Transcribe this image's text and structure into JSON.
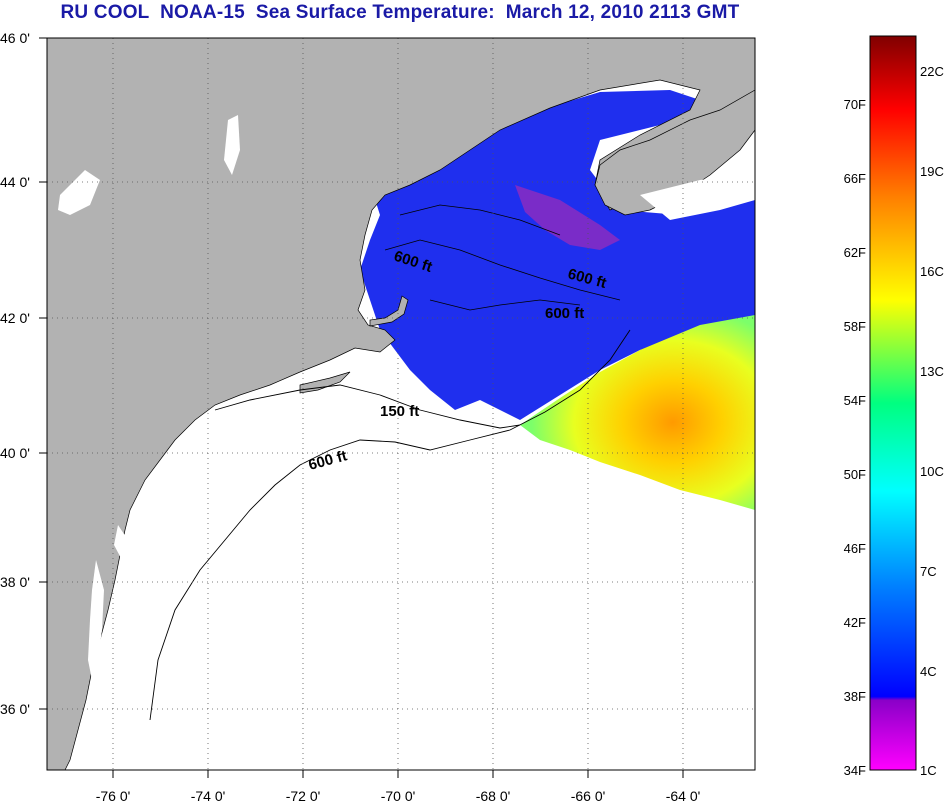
{
  "title": "RU COOL  NOAA-15  Sea Surface Temperature:  March 12, 2010 2113 GMT",
  "map": {
    "lon_labels": [
      "-76 0'",
      "-74 0'",
      "-72 0'",
      "-70 0'",
      "-68 0'",
      "-66 0'",
      "-64 0'"
    ],
    "lat_labels": [
      "46 0'",
      "44 0'",
      "42 0'",
      "40 0'",
      "38 0'",
      "36 0'"
    ],
    "contour_labels": [
      "600 ft",
      "600 ft",
      "600 ft",
      "150 ft",
      "600 ft"
    ],
    "colors": {
      "land": "#b2b2b2",
      "no_data": "#ffffff",
      "cold_water": "#1f2fee",
      "grid": "#555555"
    }
  },
  "colorbar": {
    "fahrenheit_labels": [
      "34F",
      "38F",
      "42F",
      "46F",
      "50F",
      "54F",
      "58F",
      "62F",
      "66F",
      "70F"
    ],
    "celsius_labels": [
      "1C",
      "4C",
      "7C",
      "10C",
      "13C",
      "16C",
      "19C",
      "22C"
    ],
    "gradient_colors": [
      "#ff00ff",
      "#8a00c8",
      "#0000ff",
      "#0080ff",
      "#00ffff",
      "#00ff80",
      "#ffff00",
      "#ff8000",
      "#ff0000",
      "#800000"
    ]
  }
}
